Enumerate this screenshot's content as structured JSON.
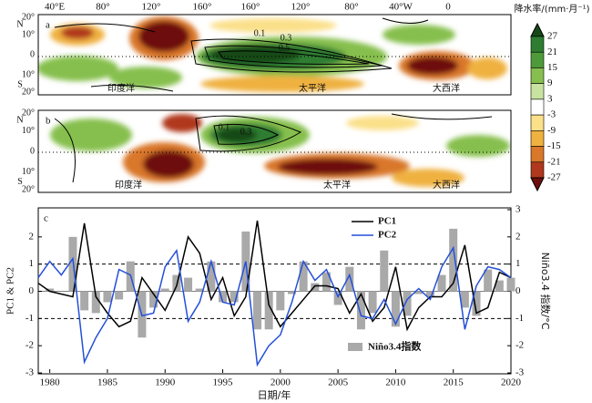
{
  "maps": {
    "lon_labels": [
      "40°E",
      "80°",
      "120°",
      "160°",
      "160°",
      "120°",
      "80°",
      "40°W",
      "0"
    ],
    "lat_labels": [
      "20°",
      "10°",
      "0",
      "10°",
      "20°"
    ],
    "hemispheres": [
      "N",
      "S"
    ],
    "panels": [
      {
        "label": "a",
        "oceans": [
          "印度洋",
          "太平洋",
          "大西洋"
        ],
        "contours": [
          "0.1",
          "0.3",
          "0.5"
        ]
      },
      {
        "label": "b",
        "oceans": [
          "印度洋",
          "太平洋",
          "大西洋"
        ],
        "contours": [
          "0.1",
          "0.3"
        ]
      }
    ],
    "colorbar": {
      "title": "降水率/(mm·月⁻¹)",
      "ticks": [
        27,
        21,
        15,
        9,
        3,
        -3,
        -9,
        -15,
        -21,
        -27
      ],
      "colors": [
        "#154a17",
        "#2e7d32",
        "#4e9a3a",
        "#86bf4e",
        "#c8e3a0",
        "#ffffff",
        "#fbe08a",
        "#efb13f",
        "#d9772a",
        "#b0381c",
        "#6e0e0e"
      ]
    }
  },
  "chart_data": {
    "type": "combo",
    "label": "c",
    "x_label": "日期/年",
    "y_label": "PC1 & PC2",
    "y2_label": "Niño3.4 指数/°C",
    "x": [
      1979,
      1980,
      1981,
      1982,
      1983,
      1984,
      1985,
      1986,
      1987,
      1988,
      1989,
      1990,
      1991,
      1992,
      1993,
      1994,
      1995,
      1996,
      1997,
      1998,
      1999,
      2000,
      2001,
      2002,
      2003,
      2004,
      2005,
      2006,
      2007,
      2008,
      2009,
      2010,
      2011,
      2012,
      2013,
      2014,
      2015,
      2016,
      2017,
      2018,
      2019,
      2020
    ],
    "series": [
      {
        "name": "Niño3.4指数",
        "type": "bar",
        "axis": "y2",
        "color": "#a9a9a9",
        "values": [
          0,
          0.1,
          0,
          2.0,
          -0.7,
          -0.8,
          -0.4,
          -0.3,
          1.1,
          -1.7,
          -0.6,
          0.1,
          0.6,
          0.5,
          0.1,
          1.1,
          -0.4,
          -0.4,
          2.2,
          -1.4,
          -1.4,
          -0.7,
          -0.1,
          1.1,
          0.3,
          0.7,
          -0.5,
          0.9,
          -1.4,
          -0.8,
          1.5,
          -1.3,
          -0.9,
          -0.1,
          -0.2,
          0.6,
          2.3,
          -0.6,
          -0.9,
          0.8,
          0.4,
          0.5
        ]
      },
      {
        "name": "PC1",
        "type": "line",
        "color": "#000000",
        "values": [
          0.3,
          0.0,
          -0.1,
          -0.2,
          2.5,
          -0.2,
          -0.8,
          -1.3,
          -1.1,
          0.5,
          -0.1,
          -0.7,
          0.2,
          2.0,
          1.4,
          -0.3,
          0.5,
          -0.9,
          -0.2,
          2.6,
          -0.5,
          -1.3,
          -0.8,
          -0.3,
          0.2,
          0.2,
          0.1,
          -0.8,
          -0.1,
          -1.1,
          -0.6,
          0.9,
          -1.4,
          -0.6,
          -0.2,
          -0.2,
          0.3,
          1.7,
          -0.8,
          -0.6,
          0.7,
          0.5
        ]
      },
      {
        "name": "PC2",
        "type": "line",
        "color": "#2450d8",
        "values": [
          0.5,
          1.1,
          0.6,
          1.2,
          -2.6,
          -1.7,
          -1.0,
          0.8,
          0.6,
          -0.9,
          -0.8,
          0.9,
          1.5,
          -1.1,
          -0.4,
          1.1,
          -0.4,
          -0.5,
          1.1,
          -2.7,
          -2.0,
          -1.6,
          -0.4,
          1.1,
          0.4,
          0.8,
          -0.2,
          0.6,
          -0.9,
          -1.0,
          -0.3,
          -1.2,
          -0.3,
          0.1,
          -0.3,
          0.9,
          1.6,
          -1.4,
          0.2,
          0.9,
          0.8,
          0.5
        ]
      }
    ],
    "reference_lines": [
      1,
      -1
    ],
    "xlim": [
      1979,
      2020
    ],
    "xticks": [
      1980,
      1985,
      1990,
      1995,
      2000,
      2005,
      2010,
      2015,
      2020
    ],
    "ylim": [
      -3,
      3
    ],
    "yticks": [
      -3,
      -2,
      -1,
      0,
      1,
      2
    ],
    "y2lim": [
      -3,
      3
    ],
    "y2ticks": [
      -3,
      -2,
      -1,
      0,
      1,
      2,
      3
    ]
  }
}
